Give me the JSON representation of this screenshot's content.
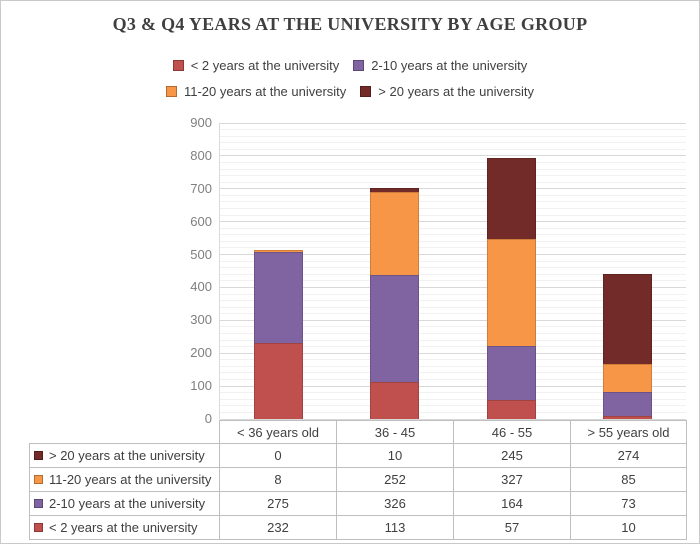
{
  "title": "Q3 & Q4 YEARS AT THE UNIVERSITY BY AGE GROUP",
  "colors": {
    "lt2": "#C0504D",
    "y2to10": "#8064A2",
    "y11to20": "#F79646",
    "gt20": "#722B28",
    "major_grid": "#d9d9d9",
    "minor_grid": "#f1f1f1",
    "axis_text": "#7f7f7f",
    "table_border": "#bfbfbf",
    "frame_border": "#c9c9c9"
  },
  "legend": {
    "rows": [
      [
        {
          "label": "< 2 years at the university",
          "color": "#C0504D",
          "icon": "legend-swatch-red"
        },
        {
          "label": "2-10 years at the university",
          "color": "#8064A2",
          "icon": "legend-swatch-purple"
        }
      ],
      [
        {
          "label": "11-20 years at the university",
          "color": "#F79646",
          "icon": "legend-swatch-orange"
        },
        {
          "label": "> 20 years at the university",
          "color": "#722B28",
          "icon": "legend-swatch-maroon"
        }
      ]
    ]
  },
  "chart_data": {
    "type": "bar",
    "stacked": true,
    "title": "Q3 & Q4 YEARS AT THE UNIVERSITY BY AGE GROUP",
    "categories": [
      "< 36 years old",
      "36 - 45",
      "46 - 55",
      "> 55 years old"
    ],
    "series": [
      {
        "name": "< 2 years at the university",
        "color": "#C0504D",
        "values": [
          232,
          113,
          57,
          10
        ]
      },
      {
        "name": "2-10 years at the university",
        "color": "#8064A2",
        "values": [
          275,
          326,
          164,
          73
        ]
      },
      {
        "name": "11-20 years at the university",
        "color": "#F79646",
        "values": [
          8,
          252,
          327,
          85
        ]
      },
      {
        "name": "> 20 years at the university",
        "color": "#722B28",
        "values": [
          0,
          10,
          245,
          274
        ]
      }
    ],
    "stack_totals": [
      515,
      701,
      793,
      442
    ],
    "xlabel": "",
    "ylabel": "",
    "ylim": [
      0,
      900
    ],
    "y_ticks": [
      0,
      100,
      200,
      300,
      400,
      500,
      600,
      700,
      800,
      900
    ],
    "major_grid_step": 100,
    "minor_grid_step": 20,
    "grid": true,
    "legend_position": "top"
  },
  "table": {
    "header": [
      "< 36 years old",
      "36 - 45",
      "46 - 55",
      "> 55 years old"
    ],
    "rows": [
      {
        "label": "> 20 years at the university",
        "color": "#722B28",
        "values": [
          "0",
          "10",
          "245",
          "274"
        ]
      },
      {
        "label": "11-20 years at the university",
        "color": "#F79646",
        "values": [
          "8",
          "252",
          "327",
          "85"
        ]
      },
      {
        "label": "2-10 years at the university",
        "color": "#8064A2",
        "values": [
          "275",
          "326",
          "164",
          "73"
        ]
      },
      {
        "label": "< 2 years at the university",
        "color": "#C0504D",
        "values": [
          "232",
          "113",
          "57",
          "10"
        ]
      }
    ]
  }
}
